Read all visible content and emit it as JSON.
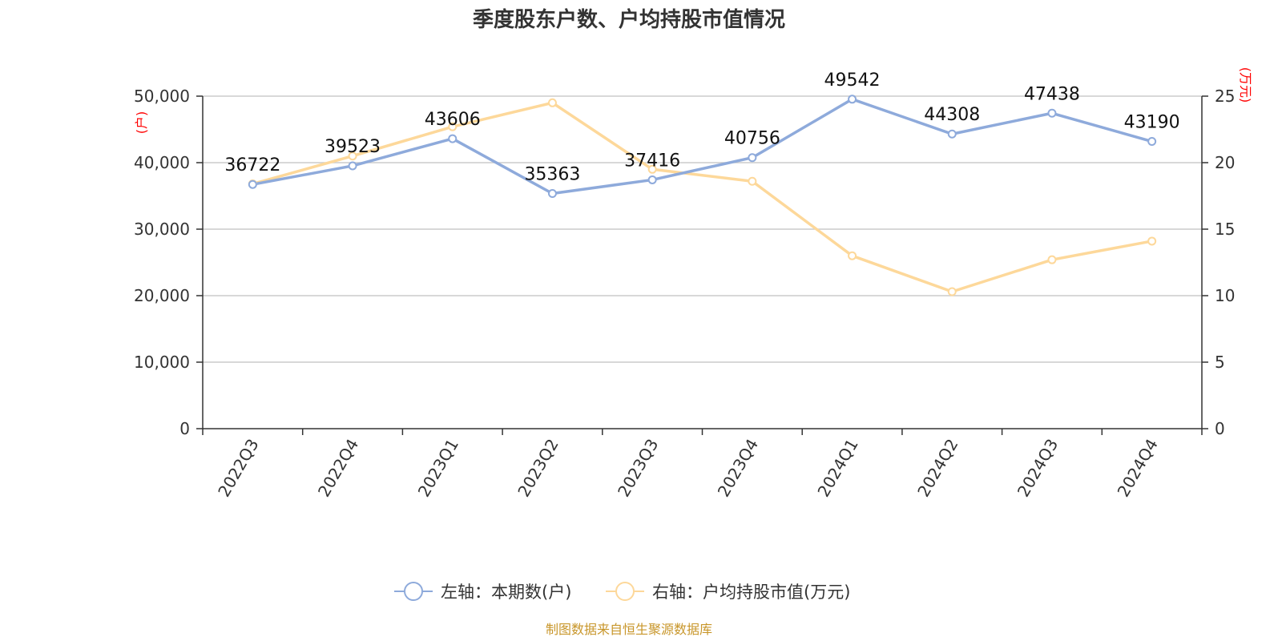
{
  "chart_data": {
    "type": "line",
    "title": "季度股东户数、户均持股市值情况",
    "categories": [
      "2022Q3",
      "2022Q4",
      "2023Q1",
      "2023Q2",
      "2023Q3",
      "2023Q4",
      "2024Q1",
      "2024Q2",
      "2024Q3",
      "2024Q4"
    ],
    "left_axis": {
      "unit": "(户)",
      "range": [
        0,
        50000
      ],
      "ticks": [
        "0",
        "10,000",
        "20,000",
        "30,000",
        "40,000",
        "50,000"
      ],
      "tick_values": [
        0,
        10000,
        20000,
        30000,
        40000,
        50000
      ]
    },
    "right_axis": {
      "unit": "(万元)",
      "range": [
        0,
        25
      ],
      "ticks": [
        "0",
        "5",
        "10",
        "15",
        "20",
        "25"
      ],
      "tick_values": [
        0,
        5,
        10,
        15,
        20,
        25
      ]
    },
    "series": [
      {
        "name": "左轴：本期数(户)",
        "axis": "left",
        "color": "#8eaadb",
        "values": [
          36722,
          39523,
          43606,
          35363,
          37416,
          40756,
          49542,
          44308,
          47438,
          43190
        ],
        "labels": [
          "36722",
          "39523",
          "43606",
          "35363",
          "37416",
          "40756",
          "49542",
          "44308",
          "47438",
          "43190"
        ]
      },
      {
        "name": "右轴：户均持股市值(万元)",
        "axis": "right",
        "color": "#fdd89a",
        "values": [
          18.4,
          20.5,
          22.7,
          24.5,
          19.5,
          18.6,
          13.0,
          10.3,
          12.7,
          14.1
        ]
      }
    ],
    "grid": true,
    "legend_position": "bottom-center",
    "source": "制图数据来自恒生聚源数据库"
  }
}
